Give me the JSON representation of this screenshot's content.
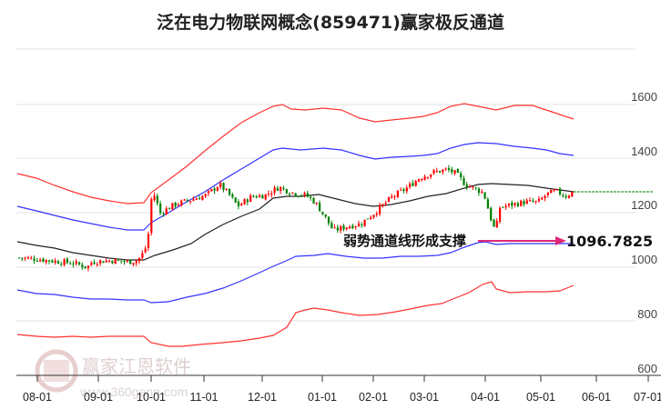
{
  "title": "泛在电力物联网概念(859471)赢家极反通道",
  "annotation": {
    "label": "弱势通道线形成支撑",
    "value": "1096.7825",
    "arrow_color": "#e0287a"
  },
  "watermark": {
    "text": "赢家江恩软件",
    "url": "www.360gann.com"
  },
  "colors": {
    "up": "#ff0000",
    "down": "#008000",
    "outer_band": "#ff3333",
    "inner_band": "#3333ff",
    "mid_line": "#222222",
    "last_price_line": "#008000",
    "grid": "#e0e0e0"
  },
  "chart_data": {
    "type": "candlestick",
    "title": "泛在电力物联网概念(859471)赢家极反通道",
    "xlabel": "",
    "ylabel": "",
    "ylim": [
      600,
      1720
    ],
    "grid": true,
    "y_ticks": [
      600,
      800,
      1000,
      1200,
      1400,
      1600
    ],
    "x_ticks": [
      "08-01",
      "09-01",
      "10-01",
      "11-01",
      "12-01",
      "01-01",
      "02-01",
      "03-01",
      "04-01",
      "05-01",
      "06-01",
      "07-01"
    ],
    "last_price": 1277,
    "support_value": 1096.7825,
    "series": [
      {
        "name": "upper_outer",
        "color": "red",
        "x": [
          "08-01",
          "08-15",
          "09-01",
          "09-15",
          "10-01",
          "10-10",
          "10-20",
          "11-01",
          "11-15",
          "12-01",
          "12-10",
          "12-20",
          "01-01",
          "01-15",
          "02-01",
          "02-15",
          "03-01",
          "03-20",
          "04-01",
          "04-15",
          "05-01",
          "05-15",
          "05-25"
        ],
        "values": [
          1325,
          1305,
          1280,
          1265,
          1262,
          1310,
          1380,
          1440,
          1510,
          1575,
          1600,
          1585,
          1590,
          1565,
          1545,
          1555,
          1565,
          1600,
          1595,
          1575,
          1555,
          1555,
          1540
        ]
      },
      {
        "name": "upper_inner",
        "color": "blue",
        "values": [
          1135,
          1115,
          1090,
          1077,
          1075,
          1120,
          1180,
          1240,
          1310,
          1385,
          1400,
          1395,
          1400,
          1380,
          1370,
          1380,
          1390,
          1430,
          1450,
          1440,
          1425,
          1420,
          1415
        ]
      },
      {
        "name": "middle",
        "color": "black",
        "values": [
          1085,
          1060,
          1040,
          1030,
          1028,
          1055,
          1090,
          1130,
          1170,
          1225,
          1240,
          1245,
          1247,
          1225,
          1225,
          1235,
          1245,
          1265,
          1290,
          1295,
          1280,
          1275,
          1272
        ]
      },
      {
        "name": "lower_inner",
        "color": "blue",
        "values": [
          920,
          900,
          890,
          885,
          878,
          875,
          890,
          915,
          950,
          990,
          1020,
          1030,
          1025,
          1025,
          1025,
          1030,
          1035,
          1055,
          1097,
          1096,
          1096,
          1096,
          1096
        ]
      },
      {
        "name": "lower_outer",
        "color": "red",
        "values": [
          725,
          715,
          715,
          705,
          700,
          700,
          705,
          715,
          730,
          760,
          815,
          835,
          840,
          845,
          850,
          870,
          880,
          905,
          935,
          910,
          910,
          910,
          930
        ]
      },
      {
        "name": "close_approx",
        "values": [
          1040,
          1025,
          1020,
          1000,
          1030,
          1200,
          1235,
          1270,
          1245,
          1230,
          1285,
          1255,
          1200,
          1140,
          1170,
          1230,
          1300,
          1360,
          1280,
          1220,
          1250,
          1280,
          1285
        ]
      }
    ]
  }
}
